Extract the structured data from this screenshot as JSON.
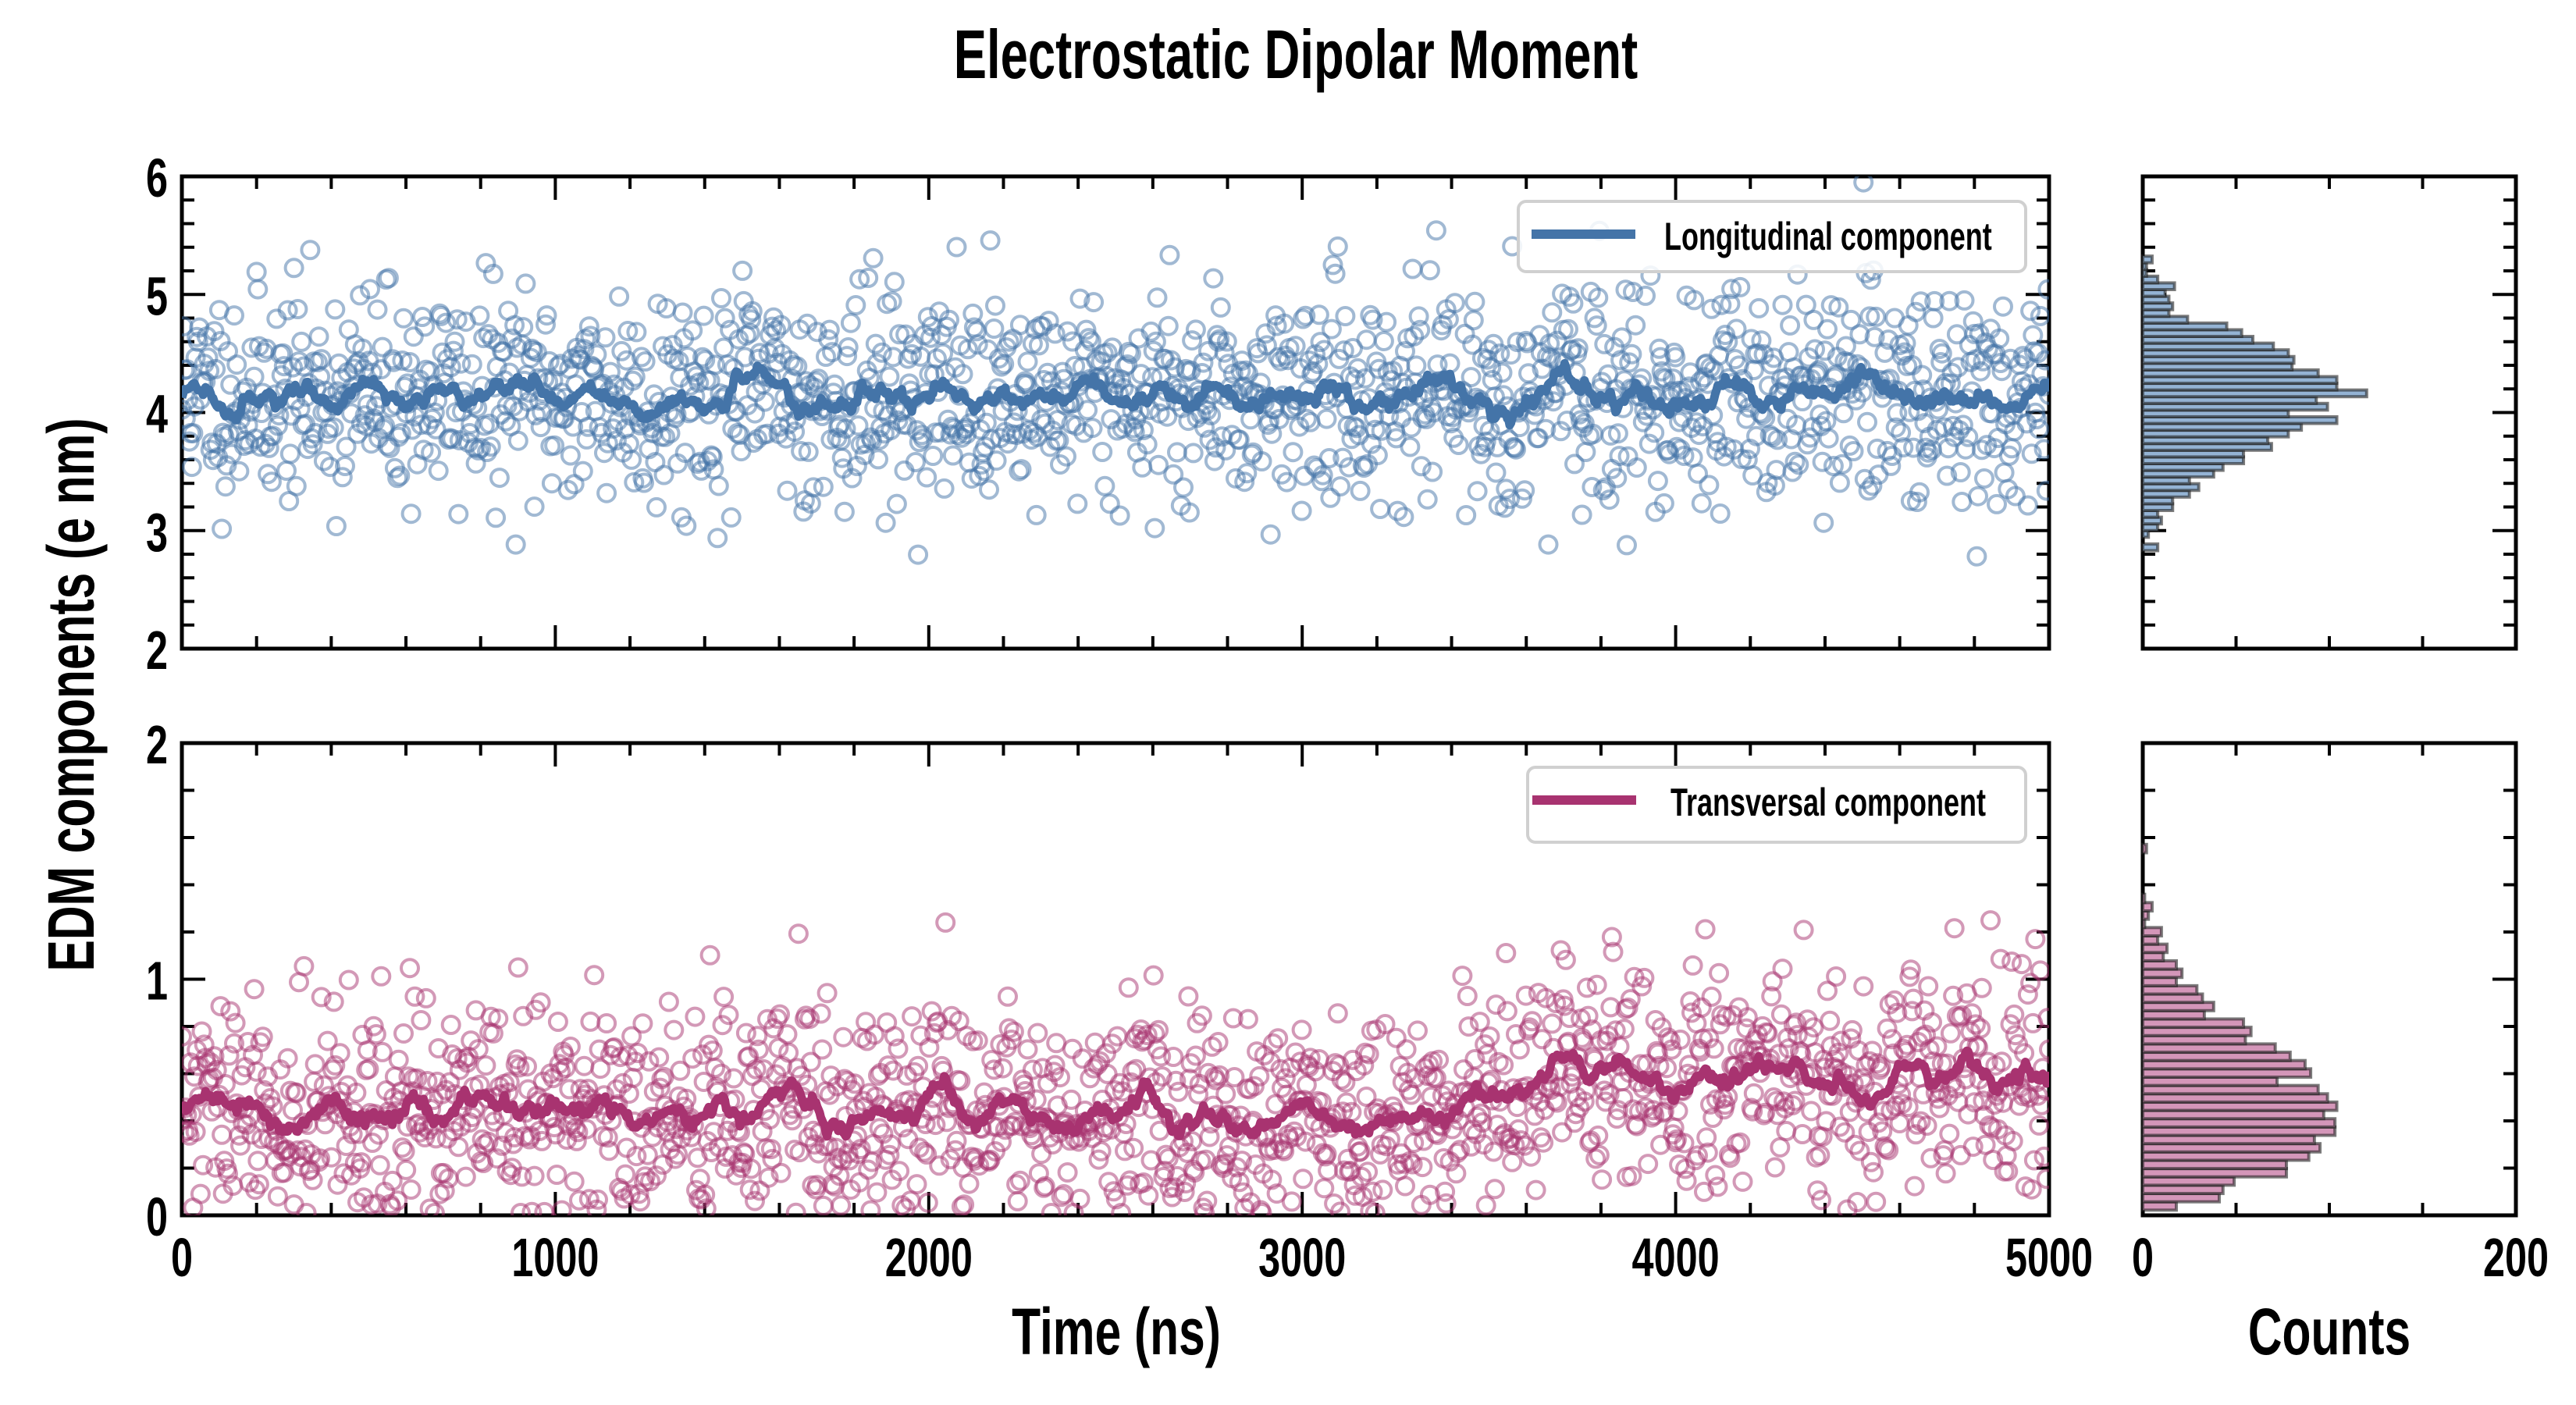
{
  "chart_data": [
    {
      "type": "scatter",
      "panel": "top-timeseries",
      "title": "Electrostatic Dipolar Moment",
      "ylabel": "EDM components (e nm)",
      "xlabel": "",
      "xlim": [
        0,
        5000
      ],
      "ylim": [
        2,
        6
      ],
      "yticks": [
        "2",
        "3",
        "4",
        "5",
        "6"
      ],
      "legend": {
        "label": "Longitudinal component",
        "placement": "top-right"
      },
      "color": "#4474a8",
      "scatter_model": {
        "n_points": 1500,
        "mean": 4.15,
        "std": 0.45,
        "smoothing_window": 12,
        "seed": 11
      },
      "line": "running average of scatter"
    },
    {
      "type": "scatter",
      "panel": "bottom-timeseries",
      "xlabel": "Time (ns)",
      "xlim": [
        0,
        5000
      ],
      "ylim": [
        0,
        2
      ],
      "xticks": [
        "0",
        "1000",
        "2000",
        "3000",
        "4000",
        "5000"
      ],
      "yticks": [
        "0",
        "1",
        "2"
      ],
      "legend": {
        "label": "Transversal component",
        "placement": "top-right"
      },
      "color": "#a83370",
      "scatter_model": {
        "n_points": 1500,
        "mean_start": 0.42,
        "mean_end": 0.6,
        "trend_start_time": 3200,
        "std": 0.24,
        "smoothing_window": 12,
        "seed": 29
      },
      "line": "running average of scatter"
    },
    {
      "type": "bar",
      "orientation": "horizontal",
      "panel": "top-histogram",
      "xlim": [
        0,
        200
      ],
      "ylim": [
        2,
        6
      ],
      "bin_start": 2.83,
      "bin_width": 0.0567,
      "counts": [
        8,
        0,
        3,
        8,
        10,
        8,
        16,
        16,
        25,
        30,
        25,
        38,
        43,
        54,
        54,
        69,
        67,
        78,
        85,
        104,
        78,
        99,
        93,
        120,
        104,
        104,
        94,
        80,
        81,
        78,
        70,
        59,
        53,
        45,
        24,
        14,
        16,
        14,
        12,
        17,
        8,
        2,
        2,
        5
      ],
      "color": "#94b3d4"
    },
    {
      "type": "bar",
      "orientation": "horizontal",
      "panel": "bottom-histogram",
      "xlabel": "Counts",
      "xlim": [
        0,
        200
      ],
      "ylim": [
        0,
        2
      ],
      "xticks": [
        "0",
        "200"
      ],
      "bin_start": 0.022,
      "bin_width": 0.0352,
      "counts": [
        18,
        41,
        43,
        49,
        77,
        77,
        89,
        95,
        92,
        103,
        103,
        97,
        104,
        99,
        94,
        72,
        90,
        87,
        79,
        71,
        55,
        58,
        54,
        33,
        38,
        32,
        29,
        18,
        21,
        18,
        11,
        13,
        8,
        10,
        1,
        3,
        5,
        1,
        0,
        0,
        0,
        0,
        0,
        2
      ],
      "color": "#d496b9"
    }
  ]
}
